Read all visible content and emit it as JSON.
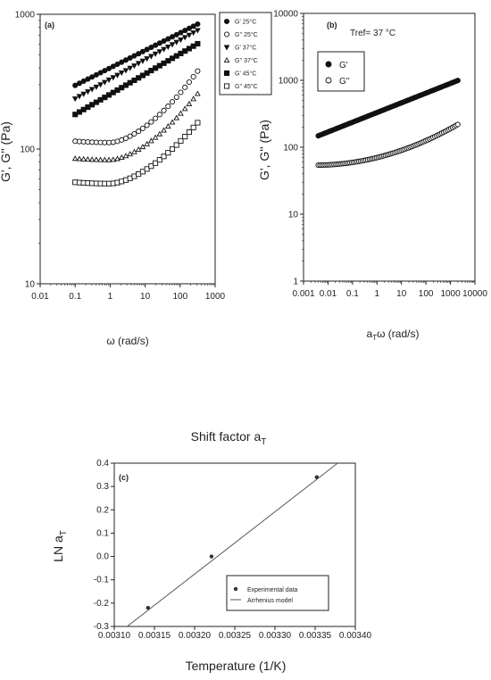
{
  "chart_data": [
    {
      "type": "scatter",
      "panel_label": "(a)",
      "xlabel": "ω (rad/s)",
      "ylabel": "G', G'' (Pa)",
      "xscale": "log",
      "yscale": "log",
      "xlim": [
        0.01,
        1000
      ],
      "ylim": [
        10,
        1000
      ],
      "xticks": [
        "0.01",
        "0.1",
        "1",
        "10",
        "100",
        "1000"
      ],
      "yticks": [
        "10",
        "100",
        "1000"
      ],
      "legend_position": "top-right outside",
      "series": [
        {
          "name": "G' 25°C",
          "marker": "circle-filled",
          "color": "#111111",
          "a": 400,
          "slope": 0.13
        },
        {
          "name": "G'' 25°C",
          "marker": "circle-open",
          "color": "#111111",
          "a": 113,
          "slope": 0.12
        },
        {
          "name": "G' 37°C",
          "marker": "triangle-down-filled",
          "color": "#111111",
          "a": 330,
          "slope": 0.145
        },
        {
          "name": "G'' 37°C",
          "marker": "triangle-up-open",
          "color": "#111111",
          "a": 84,
          "slope": 0.11
        },
        {
          "name": "G' 45°C",
          "marker": "square-filled",
          "color": "#111111",
          "a": 255,
          "slope": 0.15
        },
        {
          "name": "G'' 45°C",
          "marker": "square-open",
          "color": "#111111",
          "a": 56,
          "slope": 0.1
        }
      ],
      "x_range_data": [
        0.1,
        316
      ],
      "points_per_series": 30
    },
    {
      "type": "scatter",
      "panel_label": "(b)",
      "annotation": "Tref= 37 °C",
      "xlabel": "aTω (rad/s)",
      "ylabel": "G', G'' (Pa)",
      "xscale": "log",
      "yscale": "log",
      "xlim": [
        0.001,
        10000
      ],
      "ylim": [
        1,
        10000
      ],
      "xticks": [
        "0.001",
        "0.01",
        "0.1",
        "1",
        "10",
        "100",
        "1000",
        "10000"
      ],
      "yticks": [
        "1",
        "10",
        "100",
        "1000",
        "10000"
      ],
      "legend_position": "top-left",
      "series": [
        {
          "name": "G'",
          "marker": "circle-filled",
          "color": "#111111",
          "a": 330,
          "slope": 0.145
        },
        {
          "name": "G''",
          "marker": "circle-open",
          "color": "#111111",
          "a": 84,
          "slope": 0.11
        }
      ],
      "x_range_data": [
        0.004,
        2000
      ],
      "points_per_series": 80
    },
    {
      "type": "scatter",
      "title": "Shift factor aT",
      "panel_label": "(c)",
      "xlabel": "Temperature (1/K)",
      "ylabel": "LN aT",
      "xlim": [
        0.0031,
        0.0034
      ],
      "ylim": [
        -0.3,
        0.4
      ],
      "xticks": [
        "0.00310",
        "0.00315",
        "0.00320",
        "0.00325",
        "0.00330",
        "0.00335",
        "0.00340"
      ],
      "yticks": [
        "-0.3",
        "-0.2",
        "-0.1",
        "0.0",
        "0.1",
        "0.2",
        "0.3",
        "0.4"
      ],
      "legend_position": "bottom-right",
      "series": [
        {
          "name": "Experimental data",
          "marker": "circle-filled",
          "color": "#333333",
          "x": [
            0.003142,
            0.003221,
            0.003352
          ],
          "y": [
            -0.22,
            0.0,
            0.34
          ]
        },
        {
          "name": "Arrhenius model",
          "type": "line",
          "color": "#555555",
          "x": [
            0.003116,
            0.003378
          ],
          "y": [
            -0.3,
            0.4
          ]
        }
      ]
    }
  ]
}
